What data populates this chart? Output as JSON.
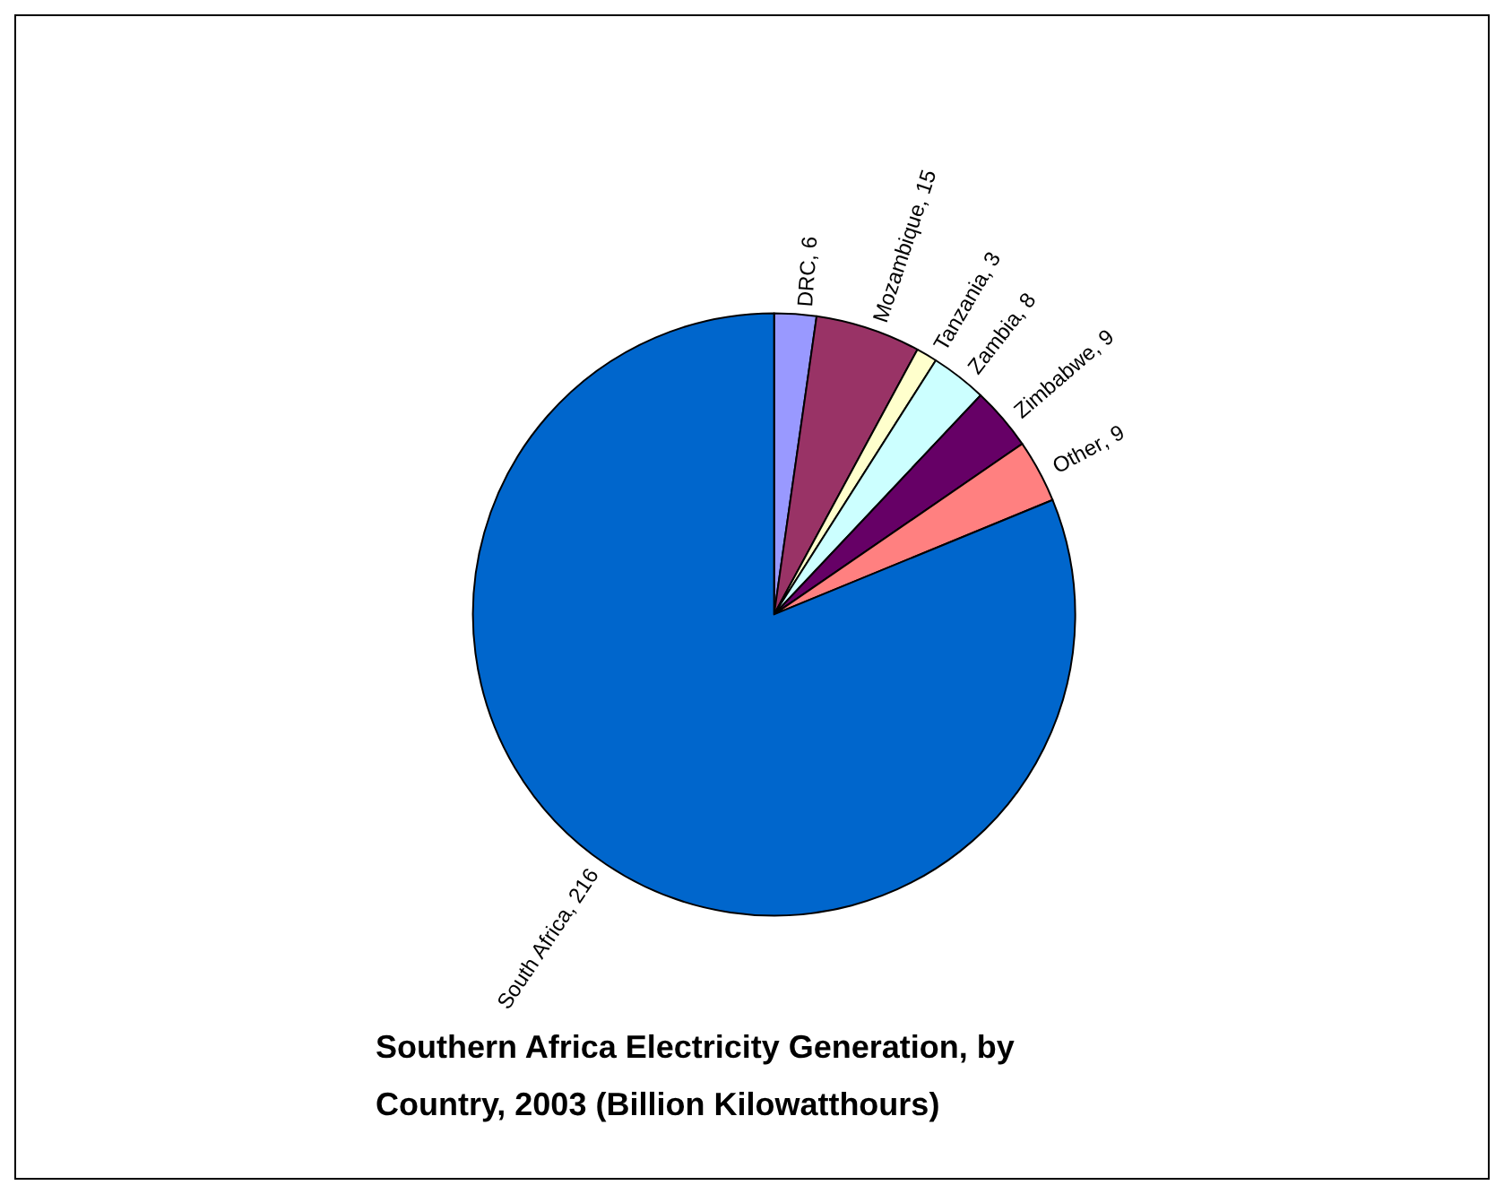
{
  "chart_data": {
    "type": "pie",
    "title": "Southern Africa Electricity Generation, by Country, 2003 (Billion Kilowatthours)",
    "categories": [
      "DRC",
      "Mozambique",
      "Tanzania",
      "Zambia",
      "Zimbabwe",
      "Other",
      "South Africa"
    ],
    "values": [
      6,
      15,
      3,
      8,
      9,
      9,
      216
    ],
    "colors": [
      "#9999ff",
      "#993366",
      "#ffffcc",
      "#ccffff",
      "#660066",
      "#ff8080",
      "#0066cc"
    ],
    "value_labels": [
      ", 6",
      ", 15",
      ", 3",
      ", 8",
      ", 9",
      ", 9",
      ", 216"
    ],
    "legend": false
  }
}
